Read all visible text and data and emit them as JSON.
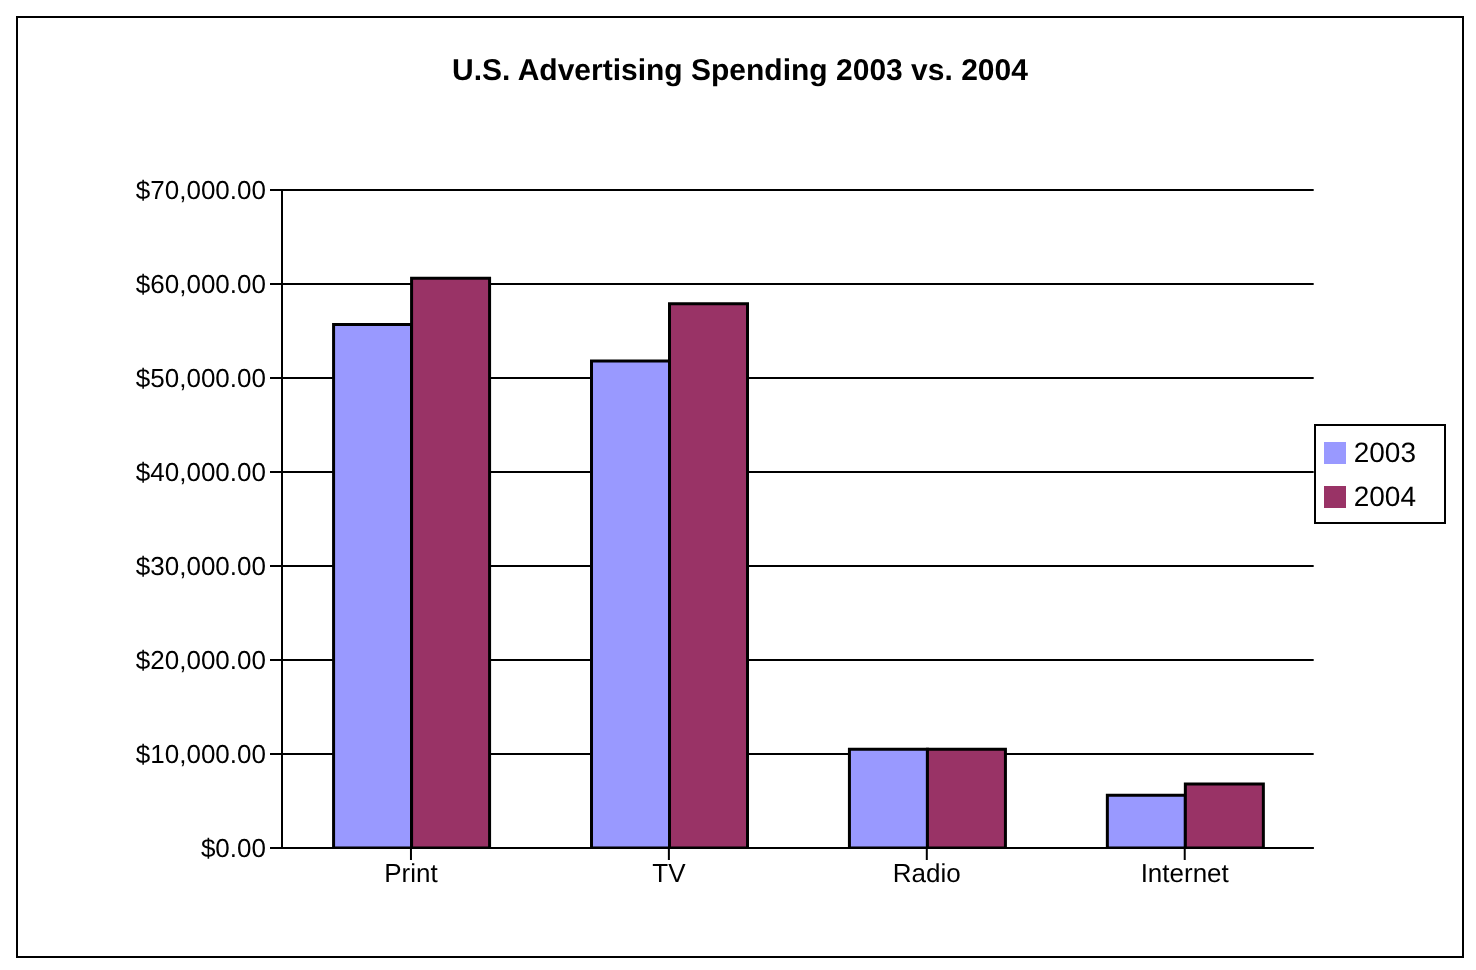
{
  "chart_data": {
    "type": "bar",
    "title": "U.S. Advertising Spending 2003 vs. 2004",
    "categories": [
      "Print",
      "TV",
      "Radio",
      "Internet"
    ],
    "series": [
      {
        "name": "2003",
        "color": "#9999ff",
        "values": [
          55700,
          51800,
          10500,
          5600
        ]
      },
      {
        "name": "2004",
        "color": "#993366",
        "values": [
          60600,
          57900,
          10500,
          6800
        ]
      }
    ],
    "ylim": [
      0,
      70000
    ],
    "yticks": [
      {
        "value": 0,
        "label": "$0.00"
      },
      {
        "value": 10000,
        "label": "$10,000.00"
      },
      {
        "value": 20000,
        "label": "$20,000.00"
      },
      {
        "value": 30000,
        "label": "$30,000.00"
      },
      {
        "value": 40000,
        "label": "$40,000.00"
      },
      {
        "value": 50000,
        "label": "$50,000.00"
      },
      {
        "value": 60000,
        "label": "$60,000.00"
      },
      {
        "value": 70000,
        "label": "$70,000.00"
      }
    ],
    "grid": "y",
    "legend": "right"
  }
}
